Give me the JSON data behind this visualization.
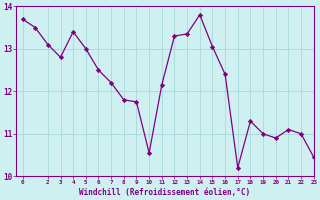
{
  "x": [
    0,
    1,
    2,
    3,
    4,
    5,
    6,
    7,
    8,
    9,
    10,
    11,
    12,
    13,
    14,
    15,
    16,
    17,
    18,
    19,
    20,
    21,
    22,
    23
  ],
  "y": [
    13.7,
    13.5,
    13.1,
    12.8,
    13.4,
    13.0,
    12.5,
    12.2,
    11.8,
    11.75,
    10.55,
    12.15,
    13.3,
    13.35,
    13.8,
    13.05,
    12.4,
    10.2,
    11.3,
    11.0,
    10.9,
    11.1,
    11.0,
    10.45
  ],
  "line_color": "#800080",
  "marker": "D",
  "marker_size": 2.2,
  "bg_color": "#cff0f0",
  "grid_color": "#a8d8d8",
  "xlabel": "Windchill (Refroidissement éolien,°C)",
  "xlabel_color": "#800080",
  "tick_color": "#800080",
  "axis_color": "#800080",
  "ylim": [
    10,
    14
  ],
  "xlim": [
    -0.5,
    23
  ],
  "yticks": [
    10,
    11,
    12,
    13,
    14
  ],
  "xticks": [
    0,
    2,
    3,
    4,
    5,
    6,
    7,
    8,
    9,
    10,
    11,
    12,
    13,
    14,
    15,
    16,
    17,
    18,
    19,
    20,
    21,
    22,
    23
  ],
  "xtick_labels": [
    "0",
    "2",
    "3",
    "4",
    "5",
    "6",
    "7",
    "8",
    "9",
    "10",
    "11",
    "12",
    "13",
    "14",
    "15",
    "16",
    "17",
    "18",
    "19",
    "20",
    "21",
    "22",
    "23"
  ]
}
